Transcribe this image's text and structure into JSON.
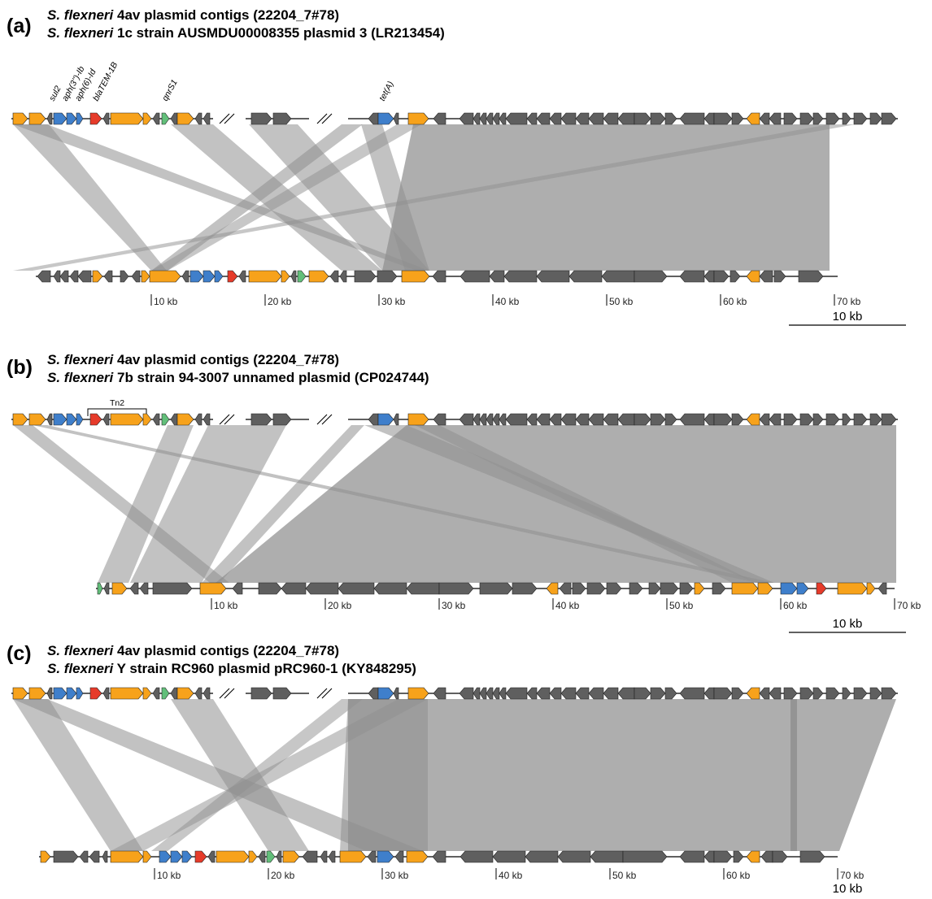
{
  "colors": {
    "arg_orange": "#f7a21b",
    "arg_blue": "#3f7fcb",
    "arg_red": "#e63b2a",
    "arg_green": "#62bf7a",
    "gene_grey": "#5f5f5f",
    "link": "#8f8f8f",
    "backbone": "#000000"
  },
  "panels": [
    {
      "letter": "(a)",
      "line1_italic": "S. flexneri",
      "line1_rest": " 4av plasmid contigs (22204_7#78)",
      "line2_italic": "S. flexneri",
      "line2_rest": " 1c strain AUSMDU00008355 plasmid 3 (LR213454)",
      "gene_labels": [
        "sul2",
        "aph(3'')-Ib",
        "aph(6)-Id",
        "blaTEM-1B",
        "qnrS1",
        "tet(A)"
      ],
      "ticks": [
        "10 kb",
        "20 kb",
        "30 kb",
        "40 kb",
        "50 kb",
        "60 kb",
        "70 kb"
      ],
      "scale_bar": "10 kb"
    },
    {
      "letter": "(b)",
      "line1_italic": "S. flexneri",
      "line1_rest": " 4av plasmid contigs (22204_7#78)",
      "line2_italic": "S. flexneri",
      "line2_rest": " 7b strain 94-3007 unnamed plasmid (CP024744)",
      "transposon": "Tn2",
      "ticks": [
        "10 kb",
        "20 kb",
        "30 kb",
        "40 kb",
        "50 kb",
        "60 kb",
        "70 kb"
      ],
      "scale_bar": "10 kb"
    },
    {
      "letter": "(c)",
      "line1_italic": "S. flexneri",
      "line1_rest": " 4av plasmid contigs (22204_7#78)",
      "line2_italic": "S. flexneri",
      "line2_rest": " Y strain RC960 plasmid pRC960-1 (KY848295)",
      "ticks": [
        "10 kb",
        "20 kb",
        "30 kb",
        "40 kb",
        "50 kb",
        "60 kb",
        "70 kb"
      ],
      "scale_bar": "10 kb"
    }
  ]
}
